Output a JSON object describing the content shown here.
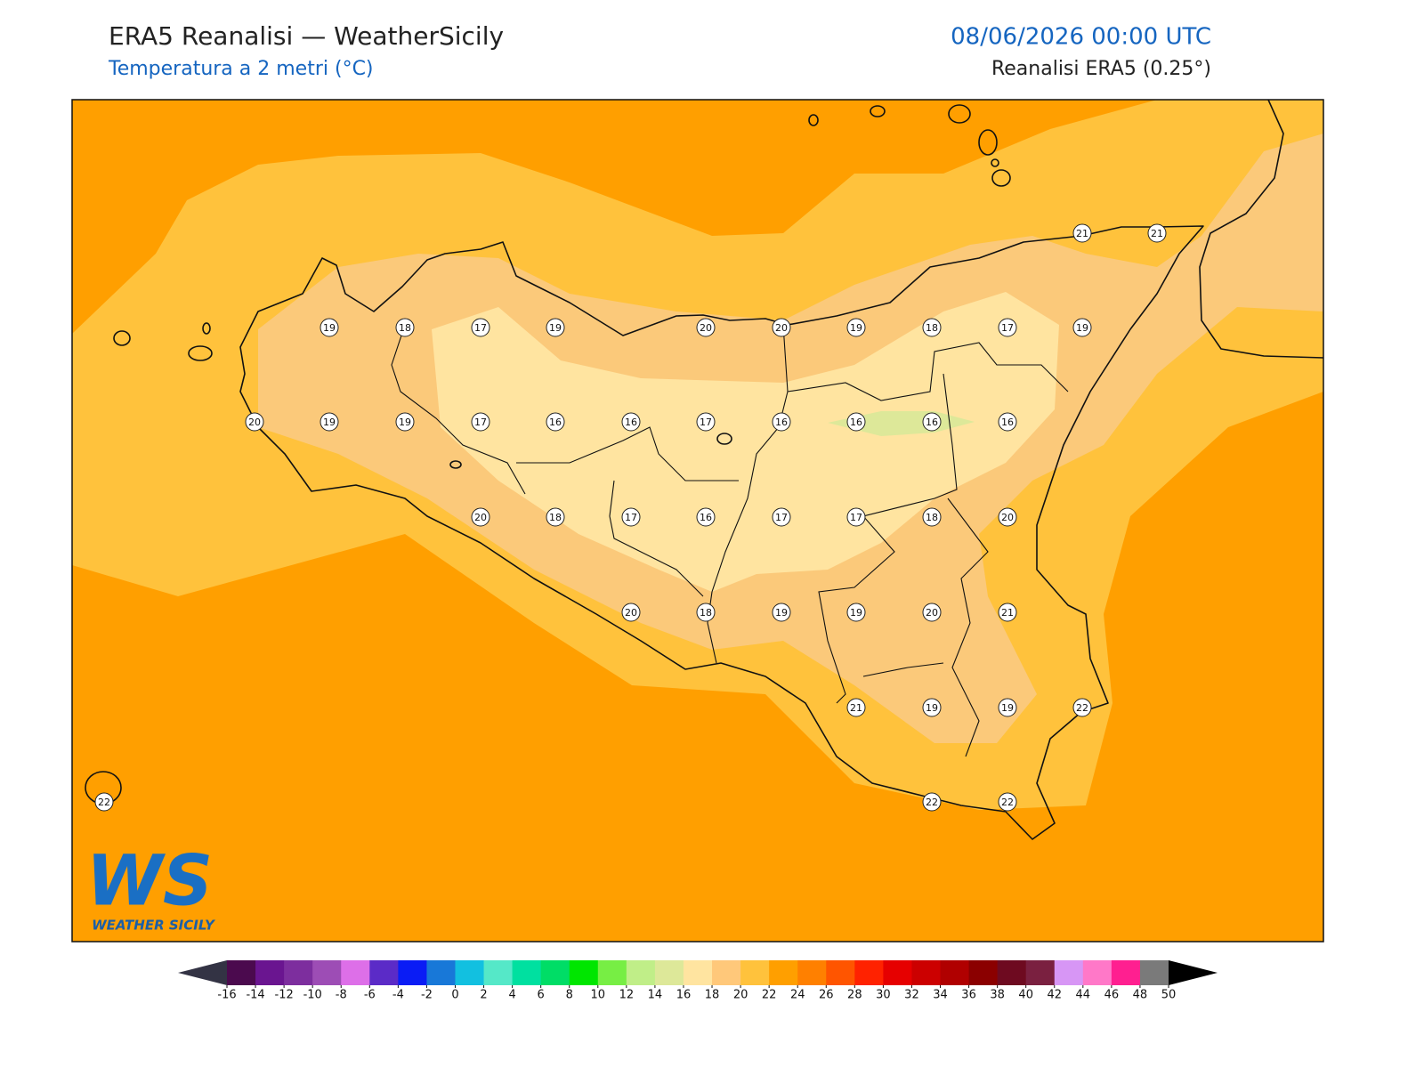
{
  "header": {
    "title": "ERA5 Reanalisi — WeatherSicily",
    "subtitle": "Temperatura a 2 metri (°C)",
    "datetime": "08/06/2026 00:00 UTC",
    "source": "Reanalisi ERA5 (0.25°)"
  },
  "map": {
    "stations": [
      21,
      21,
      19,
      18,
      17,
      19,
      20,
      20,
      19,
      18,
      17,
      19,
      20,
      19,
      19,
      17,
      16,
      16,
      17,
      16,
      16,
      16,
      16,
      20,
      18,
      17,
      16,
      17,
      17,
      18,
      20,
      20,
      18,
      19,
      19,
      20,
      21,
      21,
      19,
      19,
      22,
      22,
      22,
      22
    ]
  },
  "colorbar": {
    "ticks": [
      -16,
      -14,
      -12,
      -10,
      -8,
      -6,
      -4,
      -2,
      0,
      2,
      4,
      6,
      8,
      10,
      12,
      14,
      16,
      18,
      20,
      22,
      24,
      26,
      28,
      30,
      32,
      34,
      36,
      38,
      40,
      42,
      44,
      46,
      48,
      50
    ],
    "colors": [
      "#4b0a4e",
      "#6a1590",
      "#7d2e9e",
      "#9d4db5",
      "#dd6fe8",
      "#5b2bc7",
      "#0a1cf5",
      "#1878d8",
      "#12c0e0",
      "#55e8c8",
      "#00e0a0",
      "#00dd66",
      "#00e600",
      "#77ee44",
      "#c0ee88",
      "#dde899",
      "#ffe4a0",
      "#ffc87a",
      "#ffc23c",
      "#ff9f00",
      "#ff8000",
      "#ff5500",
      "#ff2200",
      "#e60000",
      "#cc0000",
      "#b00000",
      "#8b0000",
      "#6e0a20",
      "#7a2040",
      "#d796f5",
      "#ff78c8",
      "#ff1f90",
      "#7a7a7a",
      "#3a3a3a"
    ],
    "extend_colors": [
      "#333344",
      "#000000"
    ]
  },
  "logo": {
    "initials": "WS",
    "name": "WEATHER SICILY"
  }
}
